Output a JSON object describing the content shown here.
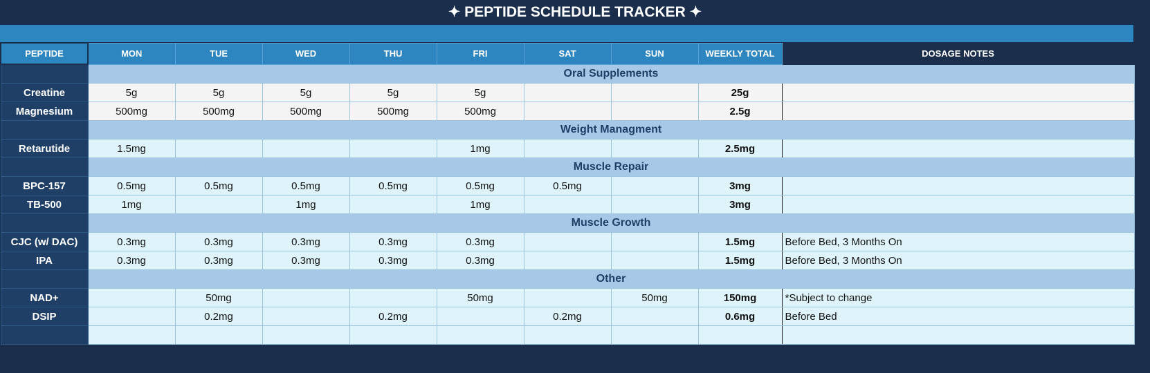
{
  "header": {
    "title": "PEPTIDE SCHEDULE TRACKER"
  },
  "table": {
    "columns": [
      "PEPTIDE",
      "MON",
      "TUE",
      "WED",
      "THU",
      "FRI",
      "SAT",
      "SUN",
      "WEEKLY TOTAL",
      "DOSAGE NOTES"
    ],
    "sections": [
      {
        "name": "Oral Supplements",
        "rows": [
          {
            "peptide": "Creatine",
            "days": [
              "5g",
              "5g",
              "5g",
              "5g",
              "5g",
              null,
              null
            ],
            "total": "25g",
            "notes": null
          },
          {
            "peptide": "Magnesium",
            "days": [
              "500mg",
              "500mg",
              "500mg",
              "500mg",
              "500mg",
              null,
              null
            ],
            "total": "2.5g",
            "notes": null
          }
        ]
      },
      {
        "name": "Weight Managment",
        "rows": [
          {
            "peptide": "Retarutide",
            "days": [
              "1.5mg",
              null,
              null,
              null,
              "1mg",
              null,
              null
            ],
            "total": "2.5mg",
            "notes": null
          }
        ]
      },
      {
        "name": "Muscle Repair",
        "rows": [
          {
            "peptide": "BPC-157",
            "days": [
              "0.5mg",
              "0.5mg",
              "0.5mg",
              "0.5mg",
              "0.5mg",
              "0.5mg",
              null
            ],
            "total": "3mg",
            "notes": null
          },
          {
            "peptide": "TB-500",
            "days": [
              "1mg",
              null,
              "1mg",
              null,
              "1mg",
              null,
              null
            ],
            "total": "3mg",
            "notes": null
          }
        ]
      },
      {
        "name": "Muscle Growth",
        "rows": [
          {
            "peptide": "CJC (w/ DAC)",
            "days": [
              "0.3mg",
              "0.3mg",
              "0.3mg",
              "0.3mg",
              "0.3mg",
              null,
              null
            ],
            "total": "1.5mg",
            "notes": "Before Bed, 3 Months On"
          },
          {
            "peptide": "IPA",
            "days": [
              "0.3mg",
              "0.3mg",
              "0.3mg",
              "0.3mg",
              "0.3mg",
              null,
              null
            ],
            "total": "1.5mg",
            "notes": "Before Bed, 3 Months On"
          }
        ]
      },
      {
        "name": "Other",
        "rows": [
          {
            "peptide": "NAD+",
            "days": [
              null,
              "50mg",
              null,
              null,
              "50mg",
              null,
              "50mg"
            ],
            "total": "150mg",
            "notes": "*Subject to change"
          },
          {
            "peptide": "DSIP",
            "days": [
              null,
              "0.2mg",
              null,
              "0.2mg",
              null,
              "0.2mg",
              null
            ],
            "total": "0.6mg",
            "notes": "Before Bed"
          }
        ]
      }
    ]
  }
}
